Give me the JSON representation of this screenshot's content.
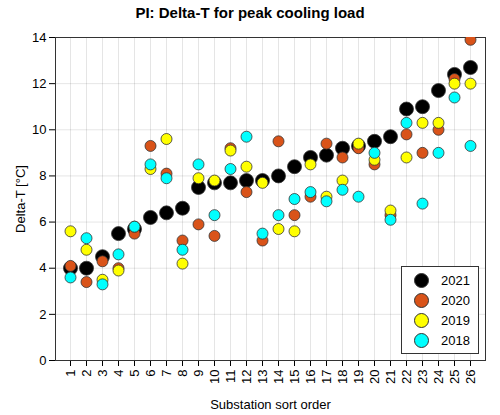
{
  "chart_data": {
    "type": "scatter",
    "title": "PI: Delta-T for peak cooling load",
    "x_label": "Substation sort order",
    "y_label": "Delta-T [°C]",
    "categories": [
      "1",
      "2",
      "3",
      "4",
      "5",
      "6",
      "7",
      "8",
      "9",
      "10",
      "11",
      "12",
      "13",
      "14",
      "15",
      "16",
      "17",
      "18",
      "19",
      "20",
      "21",
      "22",
      "23",
      "24",
      "25",
      "26"
    ],
    "series": [
      {
        "name": "2021",
        "color": "#000000",
        "marker": "circle",
        "values": [
          4.0,
          4.0,
          4.5,
          5.5,
          5.7,
          6.2,
          6.4,
          6.6,
          7.5,
          7.7,
          7.7,
          7.8,
          7.8,
          8.0,
          8.4,
          8.8,
          8.9,
          9.2,
          9.3,
          9.5,
          9.7,
          10.9,
          11.0,
          11.7,
          12.4,
          12.7
        ]
      },
      {
        "name": "2020",
        "color": "#d95319",
        "marker": "circle",
        "values": [
          4.1,
          3.4,
          4.3,
          4.0,
          5.5,
          9.3,
          8.1,
          5.2,
          5.9,
          5.4,
          9.2,
          7.3,
          5.2,
          9.5,
          6.3,
          7.1,
          9.4,
          8.8,
          9.2,
          8.5,
          6.3,
          9.8,
          9.0,
          10.0,
          12.2,
          13.9
        ]
      },
      {
        "name": "2019",
        "color": "#ffff00",
        "marker": "circle",
        "values": [
          5.6,
          4.8,
          3.5,
          3.9,
          5.8,
          8.3,
          9.6,
          4.2,
          7.9,
          7.8,
          9.1,
          8.4,
          7.7,
          5.7,
          5.6,
          8.5,
          7.1,
          7.8,
          9.4,
          8.7,
          6.5,
          8.8,
          10.3,
          10.3,
          12.0,
          12.0
        ]
      },
      {
        "name": "2018",
        "color": "#00ffff",
        "marker": "circle",
        "values": [
          3.6,
          5.3,
          3.3,
          4.6,
          5.8,
          8.5,
          7.9,
          4.8,
          8.5,
          6.3,
          8.3,
          9.7,
          5.5,
          6.3,
          7.0,
          7.3,
          6.9,
          7.4,
          7.1,
          9.0,
          6.1,
          10.3,
          6.8,
          9.0,
          11.4,
          9.3
        ]
      }
    ],
    "ylim": [
      0,
      14
    ],
    "yticks": [
      0,
      2,
      4,
      6,
      8,
      10,
      12,
      14
    ],
    "grid": true,
    "legend": "southeast"
  }
}
